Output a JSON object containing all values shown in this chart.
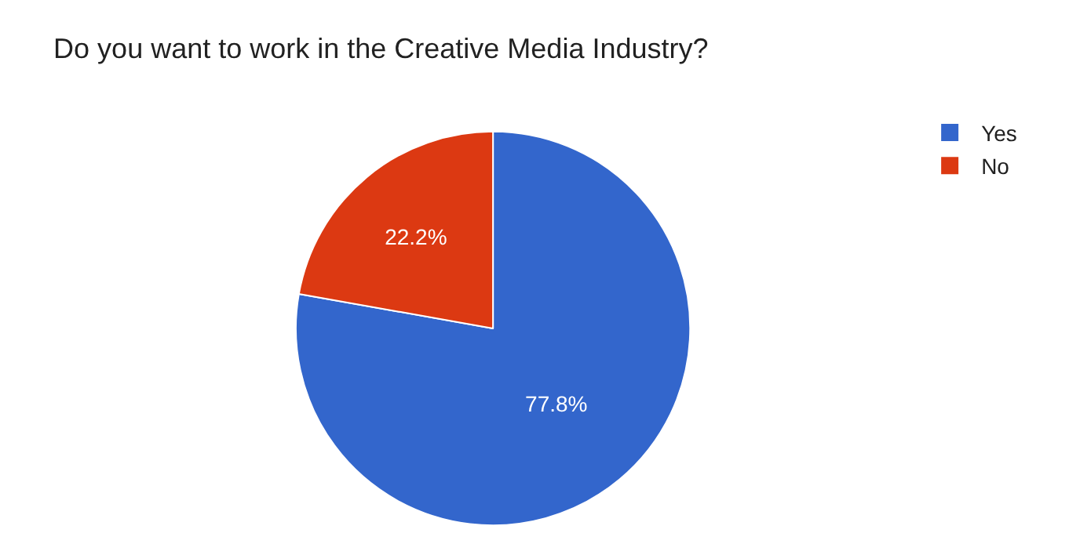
{
  "chart_data": {
    "type": "pie",
    "title": "Do you want to work in the Creative Media Industry?",
    "categories": [
      "Yes",
      "No"
    ],
    "values": [
      77.8,
      22.2
    ],
    "colors": [
      "#3366cc",
      "#dc3912"
    ],
    "value_labels": [
      "77.8%",
      "22.2%"
    ],
    "legend": "top right"
  }
}
